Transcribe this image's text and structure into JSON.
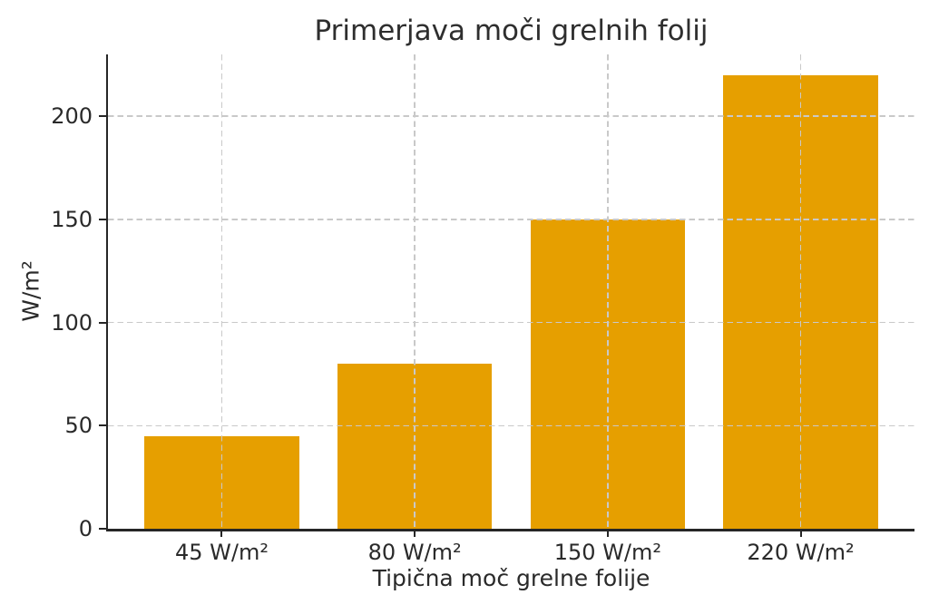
{
  "chart_data": {
    "type": "bar",
    "title": "Primerjava moči grelnih folij",
    "xlabel": "Tipična moč grelne folije",
    "ylabel": "W/m²",
    "categories": [
      "45 W/m²",
      "80 W/m²",
      "150 W/m²",
      "220 W/m²"
    ],
    "values": [
      45,
      80,
      150,
      220
    ],
    "yticks": [
      0,
      50,
      100,
      150,
      200
    ],
    "ylim": [
      0,
      230
    ],
    "bar_color": "#E69F00",
    "grid": {
      "style": "dashed",
      "axes": "both",
      "color": "#c9c9c9",
      "drawn_above_bars": true
    },
    "spines": {
      "left": true,
      "bottom": true,
      "top": false,
      "right": false
    },
    "background": "#ffffff",
    "text_color": "#2a2a2a"
  }
}
